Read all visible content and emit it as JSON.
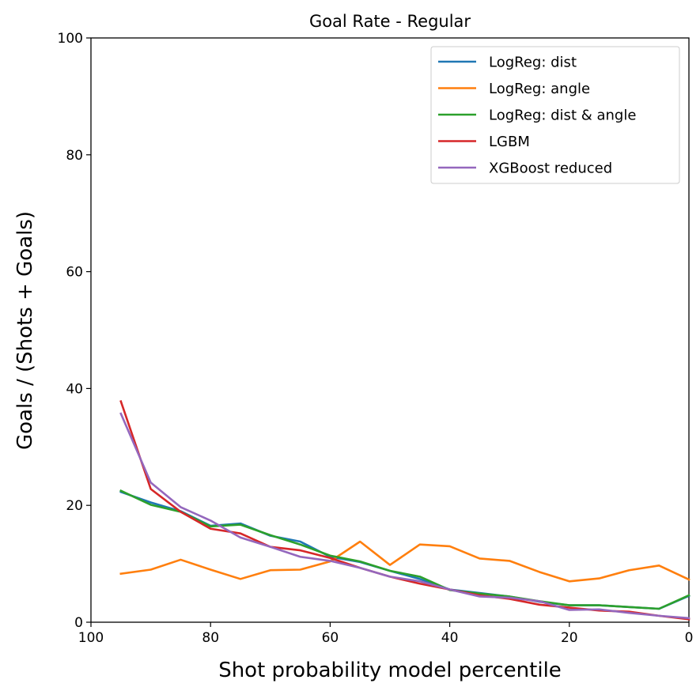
{
  "chart_data": {
    "type": "line",
    "title": "Goal Rate - Regular",
    "xlabel": "Shot probability model percentile",
    "ylabel": "Goals / (Shots + Goals)",
    "xlim": [
      100,
      0
    ],
    "ylim": [
      0,
      100
    ],
    "xticks": [
      "100",
      "80",
      "60",
      "40",
      "20",
      "0"
    ],
    "yticks": [
      "0",
      "20",
      "40",
      "60",
      "80",
      "100"
    ],
    "grid": false,
    "legend_position": "top-right",
    "x": [
      95,
      90,
      85,
      80,
      75,
      70,
      65,
      60,
      55,
      50,
      45,
      40,
      35,
      30,
      25,
      20,
      15,
      10,
      5,
      0
    ],
    "series": [
      {
        "name": "LogReg: dist",
        "color": "#1f77b4",
        "values": [
          22.3,
          20.5,
          19.0,
          16.5,
          16.9,
          14.8,
          13.8,
          11.2,
          10.3,
          8.8,
          7.4,
          5.6,
          5.0,
          4.4,
          3.5,
          2.9,
          2.9,
          2.6,
          2.3,
          4.5
        ]
      },
      {
        "name": "LogReg: angle",
        "color": "#ff7f0e",
        "values": [
          8.3,
          9.0,
          10.7,
          9.0,
          7.4,
          8.9,
          9.0,
          10.4,
          13.8,
          9.8,
          13.3,
          13.0,
          10.9,
          10.5,
          8.6,
          7.0,
          7.5,
          8.9,
          9.7,
          7.3
        ]
      },
      {
        "name": "LogReg: dist & angle",
        "color": "#2ca02c",
        "values": [
          22.5,
          20.1,
          18.9,
          16.4,
          16.7,
          14.9,
          13.3,
          11.4,
          10.4,
          8.8,
          7.8,
          5.5,
          4.9,
          4.4,
          3.6,
          2.9,
          2.9,
          2.6,
          2.3,
          4.6
        ]
      },
      {
        "name": "LGBM",
        "color": "#d62728",
        "values": [
          37.8,
          22.8,
          18.9,
          16.0,
          15.2,
          12.9,
          12.3,
          11.0,
          9.3,
          7.8,
          6.6,
          5.6,
          4.6,
          4.0,
          3.0,
          2.5,
          2.0,
          1.8,
          1.1,
          0.5
        ]
      },
      {
        "name": "XGBoost reduced",
        "color": "#9467bd",
        "values": [
          35.7,
          23.9,
          19.7,
          17.4,
          14.5,
          12.9,
          11.2,
          10.5,
          9.3,
          7.8,
          7.0,
          5.6,
          4.4,
          4.2,
          3.6,
          2.1,
          2.2,
          1.6,
          1.1,
          0.7
        ]
      }
    ]
  }
}
